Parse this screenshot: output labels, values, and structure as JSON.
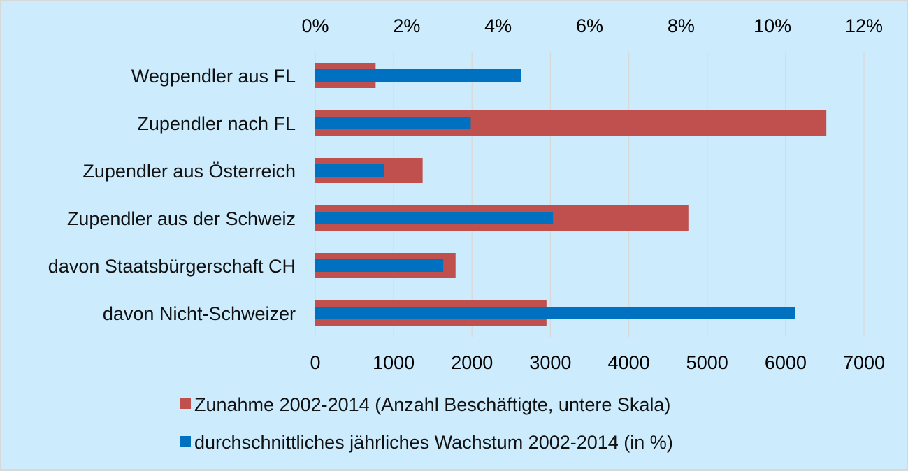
{
  "chart_data": {
    "type": "bar",
    "orientation": "horizontal",
    "title": "",
    "categories": [
      "Wegpendler aus FL",
      "Zupendler nach FL",
      "Zupendler aus Österreich",
      "Zupendler aus der Schweiz",
      "davon Staatsbürgerschaft CH",
      "davon Nicht-Schweizer"
    ],
    "series": [
      {
        "name": "Zunahme 2002-2014 (Anzahl Beschäftigte, untere Skala)",
        "axis": "bottom",
        "color": "#C0504D",
        "values": [
          770,
          6520,
          1370,
          4760,
          1790,
          2950
        ]
      },
      {
        "name": "durchschnittliches jährliches Wachstum 2002-2014 (in %)",
        "axis": "top",
        "color": "#0070C0",
        "values": [
          4.5,
          3.4,
          1.5,
          5.2,
          2.8,
          10.5
        ]
      }
    ],
    "bottom_axis": {
      "range": [
        0,
        7000
      ],
      "ticks": [
        "0",
        "1000",
        "2000",
        "3000",
        "4000",
        "5000",
        "6000",
        "7000"
      ]
    },
    "top_axis": {
      "range": [
        0,
        12
      ],
      "ticks": [
        "0%",
        "2%",
        "4%",
        "6%",
        "8%",
        "10%",
        "12%"
      ]
    },
    "grid": true,
    "legend_position": "bottom",
    "xlabel": "",
    "ylabel": ""
  }
}
